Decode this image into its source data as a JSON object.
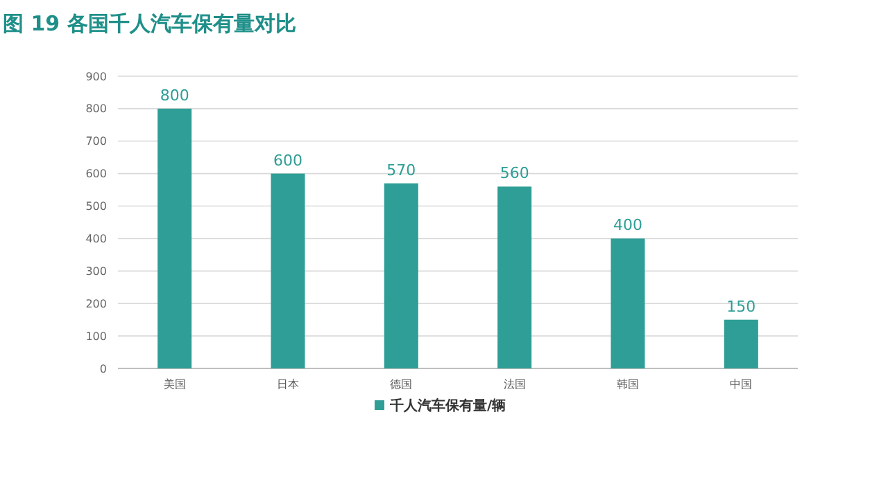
{
  "chart_data": {
    "type": "bar",
    "title": "图 19  各国千人汽车保有量对比",
    "categories": [
      "美国",
      "日本",
      "德国",
      "法国",
      "韩国",
      "中国"
    ],
    "series": [
      {
        "name": "千人汽车保有量/辆",
        "color": "#2e9e96",
        "values": [
          800,
          600,
          570,
          560,
          400,
          150
        ]
      }
    ],
    "ylim": [
      0,
      900
    ],
    "yticks": [
      0,
      100,
      200,
      300,
      400,
      500,
      600,
      700,
      800,
      900
    ],
    "grid": "y",
    "data_labels": true,
    "legend": "bottom"
  }
}
